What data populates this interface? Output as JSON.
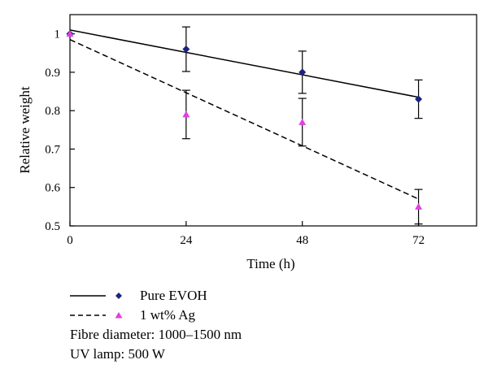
{
  "chart_data": {
    "type": "scatter",
    "xlabel": "Time (h)",
    "ylabel": "Relative weight",
    "xlim": [
      0,
      84
    ],
    "ylim": [
      0.5,
      1.05
    ],
    "xticks": [
      0,
      24,
      48,
      72
    ],
    "yticks": [
      0.5,
      0.6,
      0.7,
      0.8,
      0.9,
      1.0
    ],
    "ytick_labels": [
      "0.5",
      "0.6",
      "0.7",
      "0.8",
      "0.9",
      "1"
    ],
    "grid": false,
    "legend_position": "bottom-left",
    "series": [
      {
        "name": "Pure EVOH",
        "color": "#1a237e",
        "marker": "diamond",
        "line_style": "solid",
        "x": [
          0,
          24,
          48,
          72
        ],
        "y": [
          1.0,
          0.96,
          0.9,
          0.83
        ],
        "error": [
          0,
          0.058,
          0.055,
          0.05
        ],
        "fit": {
          "x": [
            0,
            72
          ],
          "y": [
            1.01,
            0.835
          ]
        }
      },
      {
        "name": "1 wt% Ag",
        "color": "#e040e0",
        "marker": "triangle",
        "line_style": "dashed",
        "x": [
          0,
          24,
          48,
          72
        ],
        "y": [
          1.0,
          0.79,
          0.77,
          0.55
        ],
        "error": [
          0,
          0.063,
          0.062,
          0.045
        ],
        "fit": {
          "x": [
            0,
            72
          ],
          "y": [
            0.985,
            0.57
          ]
        }
      }
    ],
    "notes": [
      "Fibre diameter: 1000–1500 nm",
      "UV lamp: 500 W"
    ]
  }
}
